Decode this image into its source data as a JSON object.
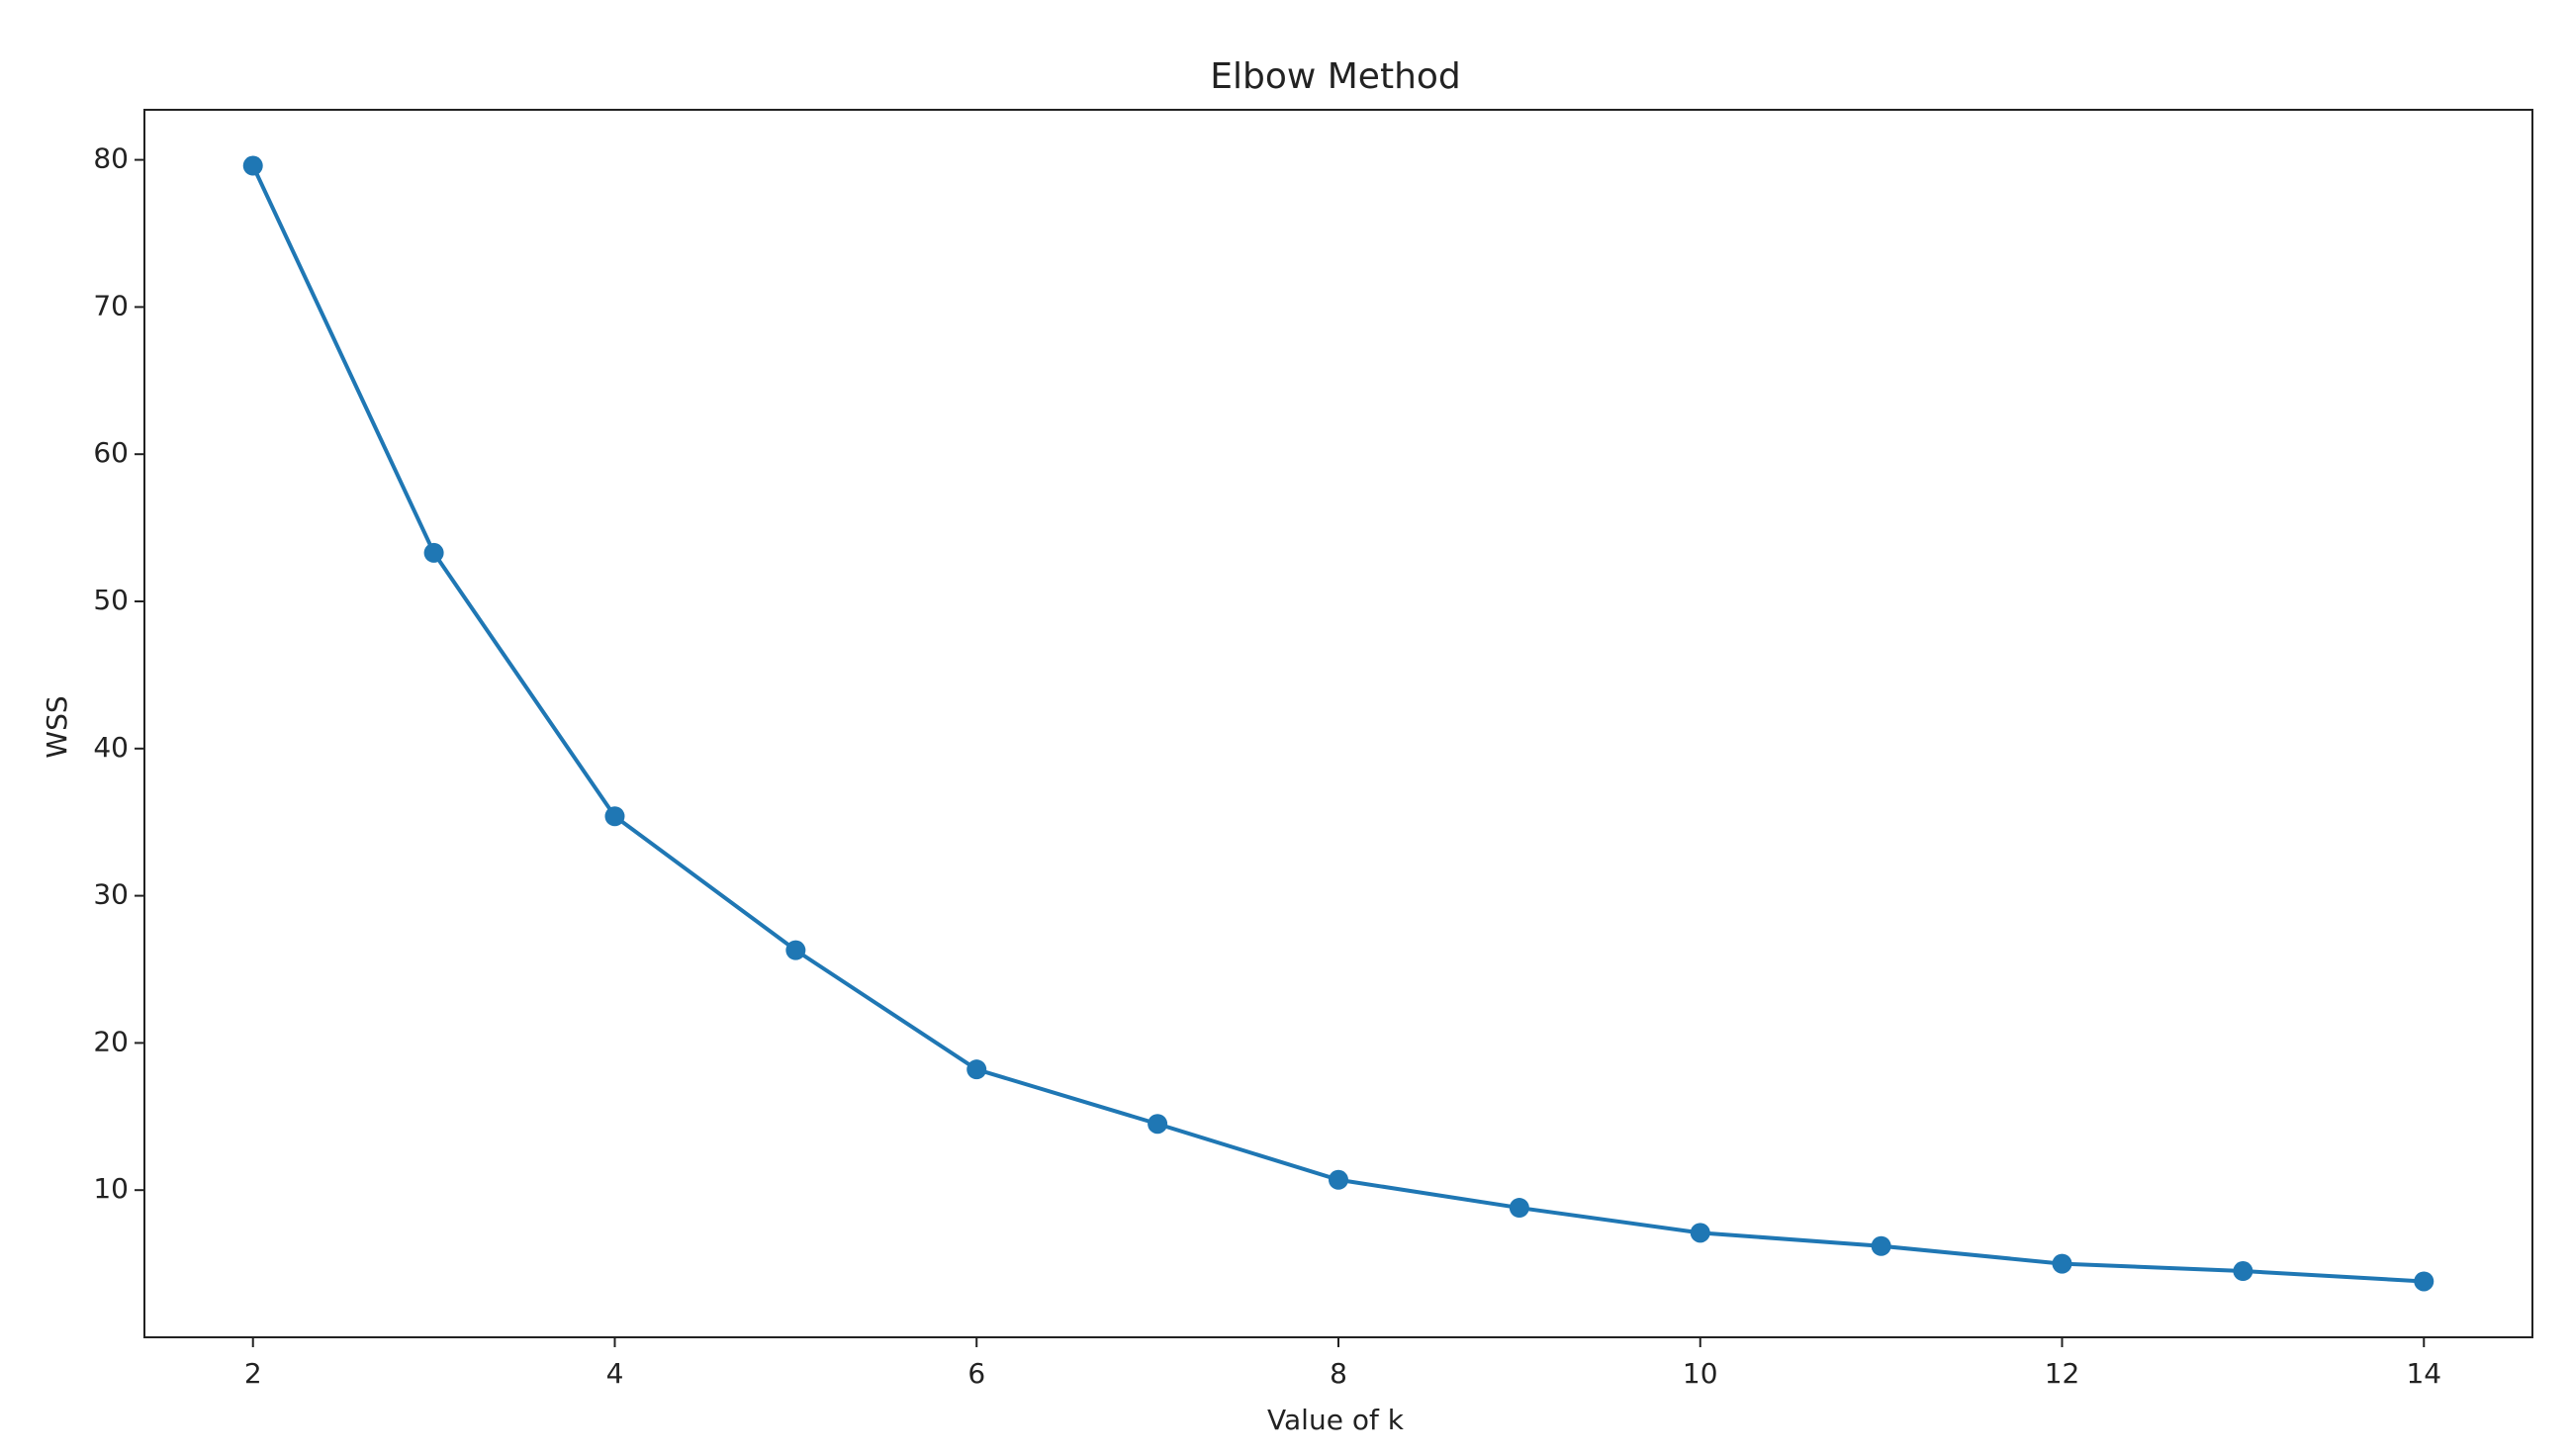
{
  "chart_data": {
    "type": "line",
    "title": "Elbow Method",
    "x_label": "Value of k",
    "y_label": "WSS",
    "x": [
      2,
      3,
      4,
      5,
      6,
      7,
      8,
      9,
      10,
      11,
      12,
      13,
      14
    ],
    "series": [
      {
        "color": "#1f77b4",
        "values": [
          79.6,
          53.3,
          35.4,
          26.3,
          18.2,
          14.5,
          10.7,
          8.8,
          7.1,
          6.2,
          5.0,
          4.5,
          3.8
        ]
      }
    ],
    "xlim": [
      1.4,
      14.6
    ],
    "ylim": [
      0,
      83.4
    ],
    "xticks": [
      2,
      4,
      6,
      8,
      10,
      12,
      14
    ],
    "yticks": [
      10,
      20,
      30,
      40,
      50,
      60,
      70,
      80
    ],
    "markers": true,
    "grid": false
  }
}
